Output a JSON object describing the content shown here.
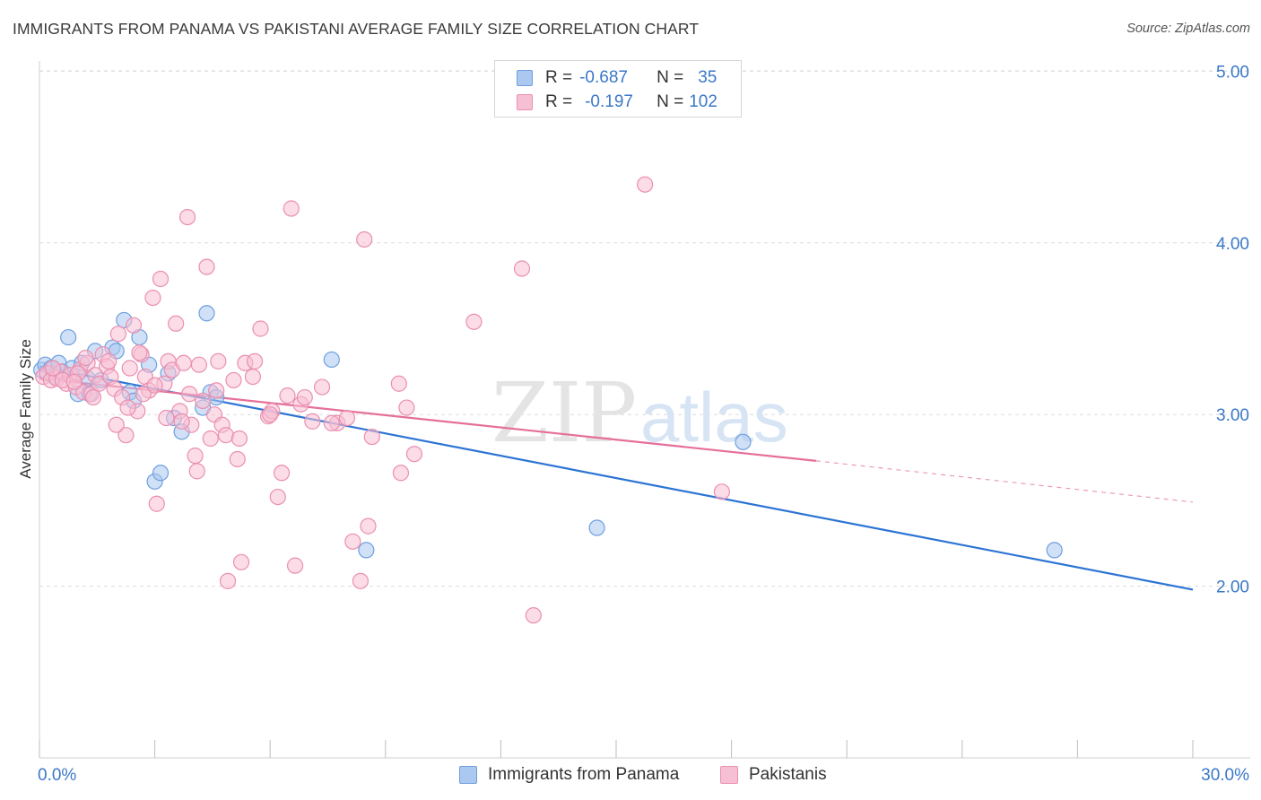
{
  "title": "IMMIGRANTS FROM PANAMA VS PAKISTANI AVERAGE FAMILY SIZE CORRELATION CHART",
  "source": "Source: ZipAtlas.com",
  "watermark": {
    "zip": "ZIP",
    "atlas": "atlas"
  },
  "legend": {
    "rows": [
      {
        "r_label": "R =",
        "r_value": "-0.687",
        "n_label": "N =",
        "n_value": "35",
        "color": "#aac8f0",
        "stroke": "#6f9fdf"
      },
      {
        "r_label": "R =",
        "r_value": "-0.197",
        "n_label": "N =",
        "n_value": "102",
        "color": "#f7bfd3",
        "stroke": "#ea8fb0"
      }
    ]
  },
  "bottom_legend": [
    {
      "label": "Immigrants from Panama",
      "color": "#aac8f0",
      "stroke": "#6f9fdf"
    },
    {
      "label": "Pakistanis",
      "color": "#f7bfd3",
      "stroke": "#ea8fb0"
    }
  ],
  "chart_data": {
    "type": "scatter",
    "title": "IMMIGRANTS FROM PANAMA VS PAKISTANI AVERAGE FAMILY SIZE CORRELATION CHART",
    "xlabel": "",
    "ylabel": "Average Family Size",
    "xlim": [
      0,
      30
    ],
    "ylim": [
      1.0,
      5.1
    ],
    "x_tick_labels": [
      "0.0%",
      "30.0%"
    ],
    "y_ticks": [
      2.0,
      3.0,
      4.0,
      5.0
    ],
    "y_tick_labels": [
      "2.00",
      "3.00",
      "4.00",
      "5.00"
    ],
    "grid": true,
    "legend_position": "top-center",
    "series": [
      {
        "name": "Immigrants from Panama",
        "color": "#6f9fdf",
        "fill": "#aac8f0",
        "trend": {
          "x": [
            0.0,
            30.0
          ],
          "y": [
            3.28,
            1.98
          ],
          "color": "#2c74d4"
        },
        "points": [
          [
            0.05,
            3.26
          ],
          [
            0.15,
            3.29
          ],
          [
            0.3,
            3.27
          ],
          [
            0.4,
            3.22
          ],
          [
            0.5,
            3.3
          ],
          [
            0.6,
            3.25
          ],
          [
            0.75,
            3.45
          ],
          [
            0.85,
            3.27
          ],
          [
            1.0,
            3.12
          ],
          [
            1.1,
            3.3
          ],
          [
            1.3,
            3.12
          ],
          [
            1.45,
            3.37
          ],
          [
            1.6,
            3.2
          ],
          [
            1.9,
            3.39
          ],
          [
            2.0,
            3.37
          ],
          [
            2.2,
            3.55
          ],
          [
            2.35,
            3.13
          ],
          [
            2.45,
            3.08
          ],
          [
            2.6,
            3.45
          ],
          [
            2.85,
            3.29
          ],
          [
            3.0,
            2.61
          ],
          [
            3.15,
            2.66
          ],
          [
            3.35,
            3.24
          ],
          [
            3.5,
            2.98
          ],
          [
            3.7,
            2.9
          ],
          [
            4.25,
            3.04
          ],
          [
            4.35,
            3.59
          ],
          [
            4.45,
            3.13
          ],
          [
            4.6,
            3.1
          ],
          [
            7.6,
            3.32
          ],
          [
            8.5,
            2.21
          ],
          [
            14.5,
            2.34
          ],
          [
            18.3,
            2.84
          ],
          [
            26.4,
            2.21
          ],
          [
            1.25,
            3.21
          ]
        ]
      },
      {
        "name": "Pakistanis",
        "color": "#ea8fb0",
        "fill": "#f7bfd3",
        "trend": {
          "x": [
            0.0,
            20.2
          ],
          "y": [
            3.21,
            2.73
          ],
          "color": "#e56f9a"
        },
        "trend_ext": {
          "x": [
            20.2,
            30.0
          ],
          "y": [
            2.73,
            2.49
          ]
        },
        "points": [
          [
            0.1,
            3.22
          ],
          [
            0.2,
            3.24
          ],
          [
            0.3,
            3.2
          ],
          [
            0.45,
            3.21
          ],
          [
            0.55,
            3.25
          ],
          [
            0.7,
            3.18
          ],
          [
            0.8,
            3.23
          ],
          [
            0.95,
            3.16
          ],
          [
            1.05,
            3.26
          ],
          [
            1.15,
            3.13
          ],
          [
            1.25,
            3.3
          ],
          [
            1.35,
            3.12
          ],
          [
            1.45,
            3.23
          ],
          [
            1.55,
            3.18
          ],
          [
            1.65,
            3.35
          ],
          [
            1.75,
            3.28
          ],
          [
            1.85,
            3.22
          ],
          [
            1.95,
            3.15
          ],
          [
            2.05,
            3.47
          ],
          [
            2.15,
            3.1
          ],
          [
            2.25,
            2.88
          ],
          [
            2.35,
            3.27
          ],
          [
            2.45,
            3.52
          ],
          [
            2.55,
            3.02
          ],
          [
            2.65,
            3.35
          ],
          [
            2.75,
            3.22
          ],
          [
            2.85,
            3.14
          ],
          [
            2.95,
            3.68
          ],
          [
            3.05,
            2.48
          ],
          [
            3.15,
            3.79
          ],
          [
            3.25,
            3.18
          ],
          [
            3.35,
            3.31
          ],
          [
            3.45,
            3.26
          ],
          [
            3.55,
            3.53
          ],
          [
            3.65,
            3.02
          ],
          [
            3.75,
            3.3
          ],
          [
            3.85,
            4.15
          ],
          [
            3.95,
            2.94
          ],
          [
            4.05,
            2.76
          ],
          [
            4.15,
            3.29
          ],
          [
            4.25,
            3.08
          ],
          [
            4.35,
            3.86
          ],
          [
            4.45,
            2.86
          ],
          [
            4.55,
            3.0
          ],
          [
            4.65,
            3.31
          ],
          [
            4.75,
            2.94
          ],
          [
            4.85,
            2.88
          ],
          [
            5.05,
            3.2
          ],
          [
            5.15,
            2.74
          ],
          [
            5.25,
            2.14
          ],
          [
            5.35,
            3.3
          ],
          [
            5.55,
            3.22
          ],
          [
            5.75,
            3.5
          ],
          [
            5.95,
            2.99
          ],
          [
            6.05,
            3.02
          ],
          [
            6.2,
            2.52
          ],
          [
            6.3,
            2.66
          ],
          [
            6.45,
            3.11
          ],
          [
            6.55,
            4.2
          ],
          [
            6.65,
            2.12
          ],
          [
            6.8,
            3.06
          ],
          [
            7.1,
            2.96
          ],
          [
            7.35,
            3.16
          ],
          [
            7.75,
            2.95
          ],
          [
            8.15,
            2.26
          ],
          [
            8.35,
            2.03
          ],
          [
            8.45,
            4.02
          ],
          [
            8.55,
            2.35
          ],
          [
            8.65,
            2.87
          ],
          [
            9.35,
            3.18
          ],
          [
            9.55,
            3.04
          ],
          [
            9.75,
            2.77
          ],
          [
            11.3,
            3.54
          ],
          [
            12.55,
            3.85
          ],
          [
            12.85,
            1.83
          ],
          [
            15.75,
            4.34
          ],
          [
            17.75,
            2.55
          ],
          [
            0.6,
            3.2
          ],
          [
            1.0,
            3.24
          ],
          [
            1.2,
            3.33
          ],
          [
            1.8,
            3.31
          ],
          [
            2.7,
            3.12
          ],
          [
            3.9,
            3.12
          ],
          [
            4.1,
            2.67
          ],
          [
            6.0,
            3.0
          ],
          [
            8.0,
            2.98
          ],
          [
            9.4,
            2.66
          ],
          [
            4.9,
            2.03
          ],
          [
            3.3,
            2.98
          ],
          [
            2.0,
            2.94
          ],
          [
            0.35,
            3.27
          ],
          [
            0.9,
            3.19
          ],
          [
            1.4,
            3.1
          ],
          [
            2.3,
            3.04
          ],
          [
            2.6,
            3.36
          ],
          [
            3.7,
            2.96
          ],
          [
            5.6,
            3.31
          ],
          [
            6.9,
            3.1
          ],
          [
            7.6,
            2.95
          ],
          [
            4.6,
            3.14
          ],
          [
            3.0,
            3.17
          ],
          [
            5.2,
            2.86
          ]
        ]
      }
    ]
  }
}
